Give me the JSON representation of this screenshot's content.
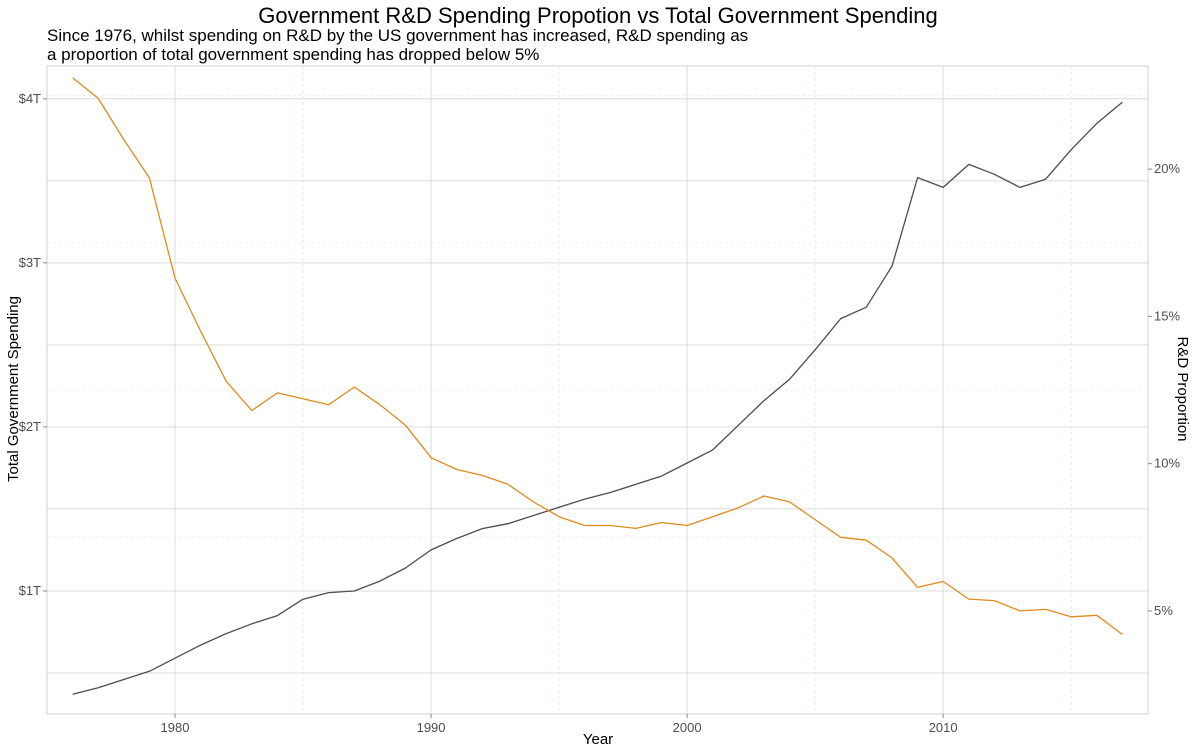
{
  "chart_data": {
    "type": "line",
    "title": "Government R&D Spending Propotion vs Total Government Spending",
    "subtitle_lines": [
      "Since 1976, whilst spending on R&D by the US government has increased, R&D spending as",
      "a proportion of total government spending has dropped below 5%"
    ],
    "xlabel": "Year",
    "ylabel_left": "Total Government Spending",
    "ylabel_right": "R&D Proportion",
    "xlim": [
      1975,
      2018
    ],
    "ylim_left": [
      0.25,
      4.2
    ],
    "ylim_right": [
      1.5,
      23.5
    ],
    "x_ticks": [
      1980,
      1990,
      2000,
      2010
    ],
    "x_tick_labels": [
      "1980",
      "1990",
      "2000",
      "2010"
    ],
    "left_ticks": [
      1,
      2,
      3,
      4
    ],
    "left_tick_labels": [
      "$1T",
      "$2T",
      "$3T",
      "$4T"
    ],
    "right_ticks": [
      5,
      10,
      15,
      20
    ],
    "right_tick_labels": [
      "5%",
      "10%",
      "15%",
      "20%"
    ],
    "grid": true,
    "x": [
      1976,
      1977,
      1978,
      1979,
      1980,
      1981,
      1982,
      1983,
      1984,
      1985,
      1986,
      1987,
      1988,
      1989,
      1990,
      1991,
      1992,
      1993,
      1994,
      1995,
      1996,
      1997,
      1998,
      1999,
      2000,
      2001,
      2002,
      2003,
      2004,
      2005,
      2006,
      2007,
      2008,
      2009,
      2010,
      2011,
      2012,
      2013,
      2014,
      2015,
      2016,
      2017
    ],
    "series": [
      {
        "axis": "left",
        "color": "#4d4d4d",
        "unit": "trillion dollars",
        "values": [
          0.37,
          0.41,
          0.46,
          0.51,
          0.59,
          0.67,
          0.74,
          0.8,
          0.85,
          0.95,
          0.99,
          1.0,
          1.06,
          1.14,
          1.25,
          1.32,
          1.38,
          1.41,
          1.46,
          1.51,
          1.56,
          1.6,
          1.65,
          1.7,
          1.78,
          1.86,
          2.01,
          2.16,
          2.29,
          2.47,
          2.66,
          2.73,
          2.98,
          3.52,
          3.46,
          3.6,
          3.54,
          3.46,
          3.51,
          3.69,
          3.85,
          3.98
        ]
      },
      {
        "axis": "right",
        "color": "#e08a1e",
        "unit": "percent",
        "values": [
          23.1,
          22.4,
          21.0,
          19.7,
          16.3,
          14.5,
          12.8,
          11.8,
          12.4,
          12.2,
          12.0,
          12.6,
          12.0,
          11.3,
          10.2,
          9.8,
          9.6,
          9.3,
          8.7,
          8.2,
          7.9,
          7.9,
          7.8,
          8.0,
          7.9,
          8.2,
          8.5,
          8.9,
          8.7,
          8.1,
          7.5,
          7.4,
          6.8,
          5.8,
          6.0,
          5.4,
          5.35,
          5.0,
          5.05,
          4.8,
          4.85,
          4.2
        ]
      }
    ]
  }
}
